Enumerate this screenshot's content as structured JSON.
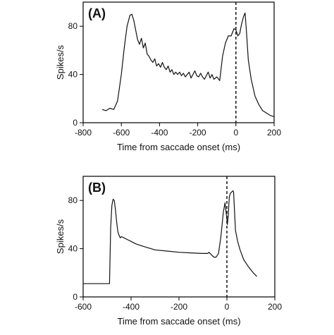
{
  "chart_data": [
    {
      "type": "line",
      "panel_label": "(A)",
      "xlabel": "Time from saccade onset (ms)",
      "ylabel": "Spikes/s",
      "xlim": [
        -800,
        200
      ],
      "ylim": [
        0,
        100
      ],
      "xticks": [
        -800,
        -600,
        -400,
        -200,
        0,
        200
      ],
      "yticks": [
        0,
        40,
        80
      ],
      "onset_line_x": 0,
      "series": [
        {
          "x": [
            -700,
            -680,
            -660,
            -640,
            -620,
            -600,
            -585,
            -570,
            -555,
            -545,
            -535,
            -525,
            -515,
            -505,
            -495,
            -485,
            -475,
            -465,
            -455,
            -445,
            -435,
            -425,
            -415,
            -405,
            -395,
            -385,
            -375,
            -365,
            -355,
            -345,
            -335,
            -325,
            -315,
            -305,
            -295,
            -285,
            -275,
            -265,
            -255,
            -245,
            -235,
            -225,
            -215,
            -205,
            -195,
            -185,
            -175,
            -165,
            -155,
            -145,
            -135,
            -125,
            -115,
            -100,
            -85,
            -70,
            -55,
            -40,
            -25,
            -10,
            0,
            10,
            20,
            30,
            40,
            48,
            55,
            65,
            80,
            100,
            120,
            140,
            160,
            180,
            200
          ],
          "y": [
            11,
            10,
            12,
            11,
            18,
            40,
            62,
            80,
            89,
            90,
            85,
            77,
            69,
            65,
            70,
            62,
            66,
            57,
            55,
            52,
            50,
            53,
            47,
            49,
            46,
            50,
            46,
            44,
            47,
            42,
            44,
            40,
            42,
            40,
            42,
            39,
            41,
            38,
            40,
            42,
            37,
            40,
            43,
            39,
            38,
            41,
            38,
            36,
            39,
            42,
            37,
            40,
            36,
            38,
            35,
            55,
            66,
            72,
            72,
            78,
            77,
            72,
            74,
            82,
            88,
            91,
            76,
            52,
            36,
            22,
            15,
            10,
            8,
            6,
            5
          ]
        }
      ]
    },
    {
      "type": "line",
      "panel_label": "(B)",
      "xlabel": "Time from saccade onset (ms)",
      "ylabel": "Spikes/s",
      "xlim": [
        -600,
        200
      ],
      "ylim": [
        0,
        100
      ],
      "xticks": [
        -600,
        -400,
        -200,
        0,
        200
      ],
      "yticks": [
        0,
        40,
        80
      ],
      "onset_line_x": 0,
      "series": [
        {
          "x": [
            -600,
            -560,
            -520,
            -495,
            -490,
            -485,
            -480,
            -475,
            -470,
            -465,
            -460,
            -455,
            -450,
            -445,
            -440,
            -430,
            -420,
            -400,
            -380,
            -350,
            -300,
            -250,
            -200,
            -150,
            -100,
            -80,
            -75,
            -65,
            -55,
            -45,
            -35,
            -25,
            -15,
            -8,
            -2,
            2,
            6,
            10,
            15,
            20,
            25,
            28,
            32,
            36,
            45,
            55,
            70,
            90,
            110,
            125
          ],
          "y": [
            11,
            11,
            11,
            11,
            11,
            58,
            76,
            81,
            80,
            72,
            62,
            54,
            51,
            49,
            50,
            49,
            48,
            46,
            44,
            42,
            39,
            38,
            37,
            36.5,
            36,
            36,
            37,
            35,
            33,
            33,
            36,
            50,
            70,
            78,
            68,
            60,
            68,
            83,
            86,
            87,
            88,
            87,
            70,
            55,
            46,
            39,
            31,
            25,
            20,
            17
          ]
        }
      ]
    }
  ]
}
